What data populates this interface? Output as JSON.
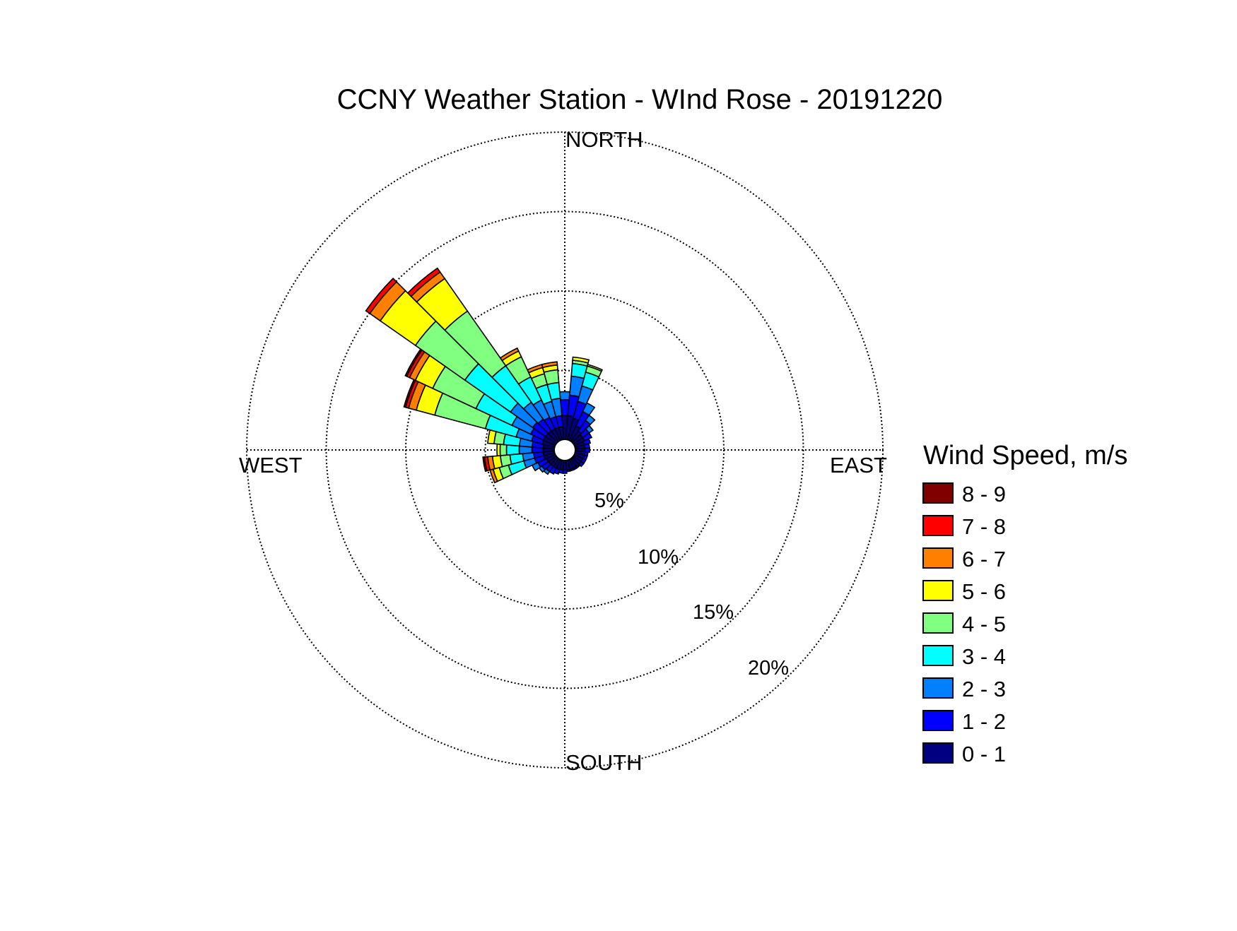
{
  "chart_data": {
    "type": "windrose",
    "title": "CCNY Weather Station - WInd Rose - 20191220",
    "cardinal_labels": {
      "north": "NORTH",
      "south": "SOUTH",
      "east": "EAST",
      "west": "WEST"
    },
    "radial_axis": {
      "unit": "%",
      "max": 20,
      "ticks": [
        5,
        10,
        15,
        20
      ],
      "tick_labels": [
        "5%",
        "10%",
        "15%",
        "20%"
      ]
    },
    "grid": true,
    "legend": {
      "title": "Wind Speed, m/s",
      "placement": "right",
      "bins": [
        {
          "label": "8 - 9",
          "color": "#800000"
        },
        {
          "label": "7 - 8",
          "color": "#ff0000"
        },
        {
          "label": "6 - 7",
          "color": "#ff8000"
        },
        {
          "label": "5 - 6",
          "color": "#ffff00"
        },
        {
          "label": "4 - 5",
          "color": "#80ff80"
        },
        {
          "label": "3 - 4",
          "color": "#00ffff"
        },
        {
          "label": "2 - 3",
          "color": "#0080ff"
        },
        {
          "label": "1 - 2",
          "color": "#0000ff"
        },
        {
          "label": "0 - 1",
          "color": "#000080"
        }
      ]
    },
    "speed_bin_order_inner_to_outer": [
      "0 - 1",
      "1 - 2",
      "2 - 3",
      "3 - 4",
      "4 - 5",
      "5 - 6",
      "6 - 7",
      "7 - 8",
      "8 - 9"
    ],
    "sector_width_deg": 10,
    "sectors": [
      {
        "direction_deg": 0,
        "cumulative": [
          1.5,
          2.5,
          3.0
        ]
      },
      {
        "direction_deg": 10,
        "cumulative": [
          1.5,
          2.8,
          4.0,
          4.8,
          5.0,
          5.2
        ]
      },
      {
        "direction_deg": 20,
        "cumulative": [
          1.4,
          2.5,
          3.5,
          4.4,
          4.8,
          4.9
        ]
      },
      {
        "direction_deg": 30,
        "cumulative": [
          1.0,
          2.0,
          2.6
        ]
      },
      {
        "direction_deg": 40,
        "cumulative": [
          0.8,
          1.6,
          2.0
        ]
      },
      {
        "direction_deg": 50,
        "cumulative": [
          0.7,
          1.2,
          1.5
        ]
      },
      {
        "direction_deg": 60,
        "cumulative": [
          0.7,
          1.2
        ]
      },
      {
        "direction_deg": 70,
        "cumulative": [
          0.6,
          1.0
        ]
      },
      {
        "direction_deg": 80,
        "cumulative": [
          0.6,
          0.9
        ]
      },
      {
        "direction_deg": 90,
        "cumulative": [
          0.6,
          0.9
        ]
      },
      {
        "direction_deg": 100,
        "cumulative": [
          0.6,
          0.8
        ]
      },
      {
        "direction_deg": 110,
        "cumulative": [
          0.6,
          0.8
        ]
      },
      {
        "direction_deg": 120,
        "cumulative": [
          0.6,
          0.8
        ]
      },
      {
        "direction_deg": 130,
        "cumulative": [
          0.6,
          0.8
        ]
      },
      {
        "direction_deg": 140,
        "cumulative": [
          0.6,
          0.7
        ]
      },
      {
        "direction_deg": 150,
        "cumulative": [
          0.6,
          0.7
        ]
      },
      {
        "direction_deg": 160,
        "cumulative": [
          0.6,
          0.7
        ]
      },
      {
        "direction_deg": 170,
        "cumulative": [
          0.6,
          0.7
        ]
      },
      {
        "direction_deg": 180,
        "cumulative": [
          0.6,
          0.8
        ]
      },
      {
        "direction_deg": 190,
        "cumulative": [
          0.6,
          0.8
        ]
      },
      {
        "direction_deg": 200,
        "cumulative": [
          0.6,
          0.9
        ]
      },
      {
        "direction_deg": 210,
        "cumulative": [
          0.6,
          1.0
        ]
      },
      {
        "direction_deg": 220,
        "cumulative": [
          0.6,
          1.0,
          1.2
        ]
      },
      {
        "direction_deg": 230,
        "cumulative": [
          0.6,
          1.1,
          1.3
        ]
      },
      {
        "direction_deg": 240,
        "cumulative": [
          0.6,
          1.2,
          1.6
        ]
      },
      {
        "direction_deg": 250,
        "cumulative": [
          0.7,
          1.3,
          2.0,
          3.0,
          3.6,
          4.0,
          4.2
        ]
      },
      {
        "direction_deg": 260,
        "cumulative": [
          0.7,
          1.3,
          2.0,
          2.8,
          3.4,
          3.9,
          4.2,
          4.4,
          4.5
        ]
      },
      {
        "direction_deg": 270,
        "cumulative": [
          0.7,
          1.4,
          2.2,
          3.0,
          3.4,
          3.6
        ]
      },
      {
        "direction_deg": 280,
        "cumulative": [
          0.7,
          1.4,
          2.2,
          3.2,
          3.8,
          4.2
        ]
      },
      {
        "direction_deg": 290,
        "cumulative": [
          0.8,
          1.5,
          2.5,
          4.5,
          7.8,
          9.0,
          9.5,
          9.7,
          9.8
        ]
      },
      {
        "direction_deg": 300,
        "cumulative": [
          0.8,
          1.7,
          3.0,
          5.5,
          8.5,
          9.7,
          10.1,
          10.3,
          10.4
        ]
      },
      {
        "direction_deg": 310,
        "cumulative": [
          0.8,
          1.8,
          3.5,
          7.0,
          10.8,
          13.5,
          14.3,
          14.6
        ]
      },
      {
        "direction_deg": 320,
        "cumulative": [
          0.8,
          1.7,
          3.0,
          5.8,
          10.0,
          12.5,
          13.0,
          13.3
        ]
      },
      {
        "direction_deg": 330,
        "cumulative": [
          0.8,
          1.6,
          2.8,
          4.4,
          5.8,
          6.2,
          6.4
        ]
      },
      {
        "direction_deg": 340,
        "cumulative": [
          0.8,
          1.5,
          2.5,
          3.6,
          4.3,
          4.7,
          4.9
        ]
      },
      {
        "direction_deg": 350,
        "cumulative": [
          0.8,
          1.5,
          2.6,
          3.6,
          4.4,
          4.7,
          4.9
        ]
      }
    ]
  }
}
